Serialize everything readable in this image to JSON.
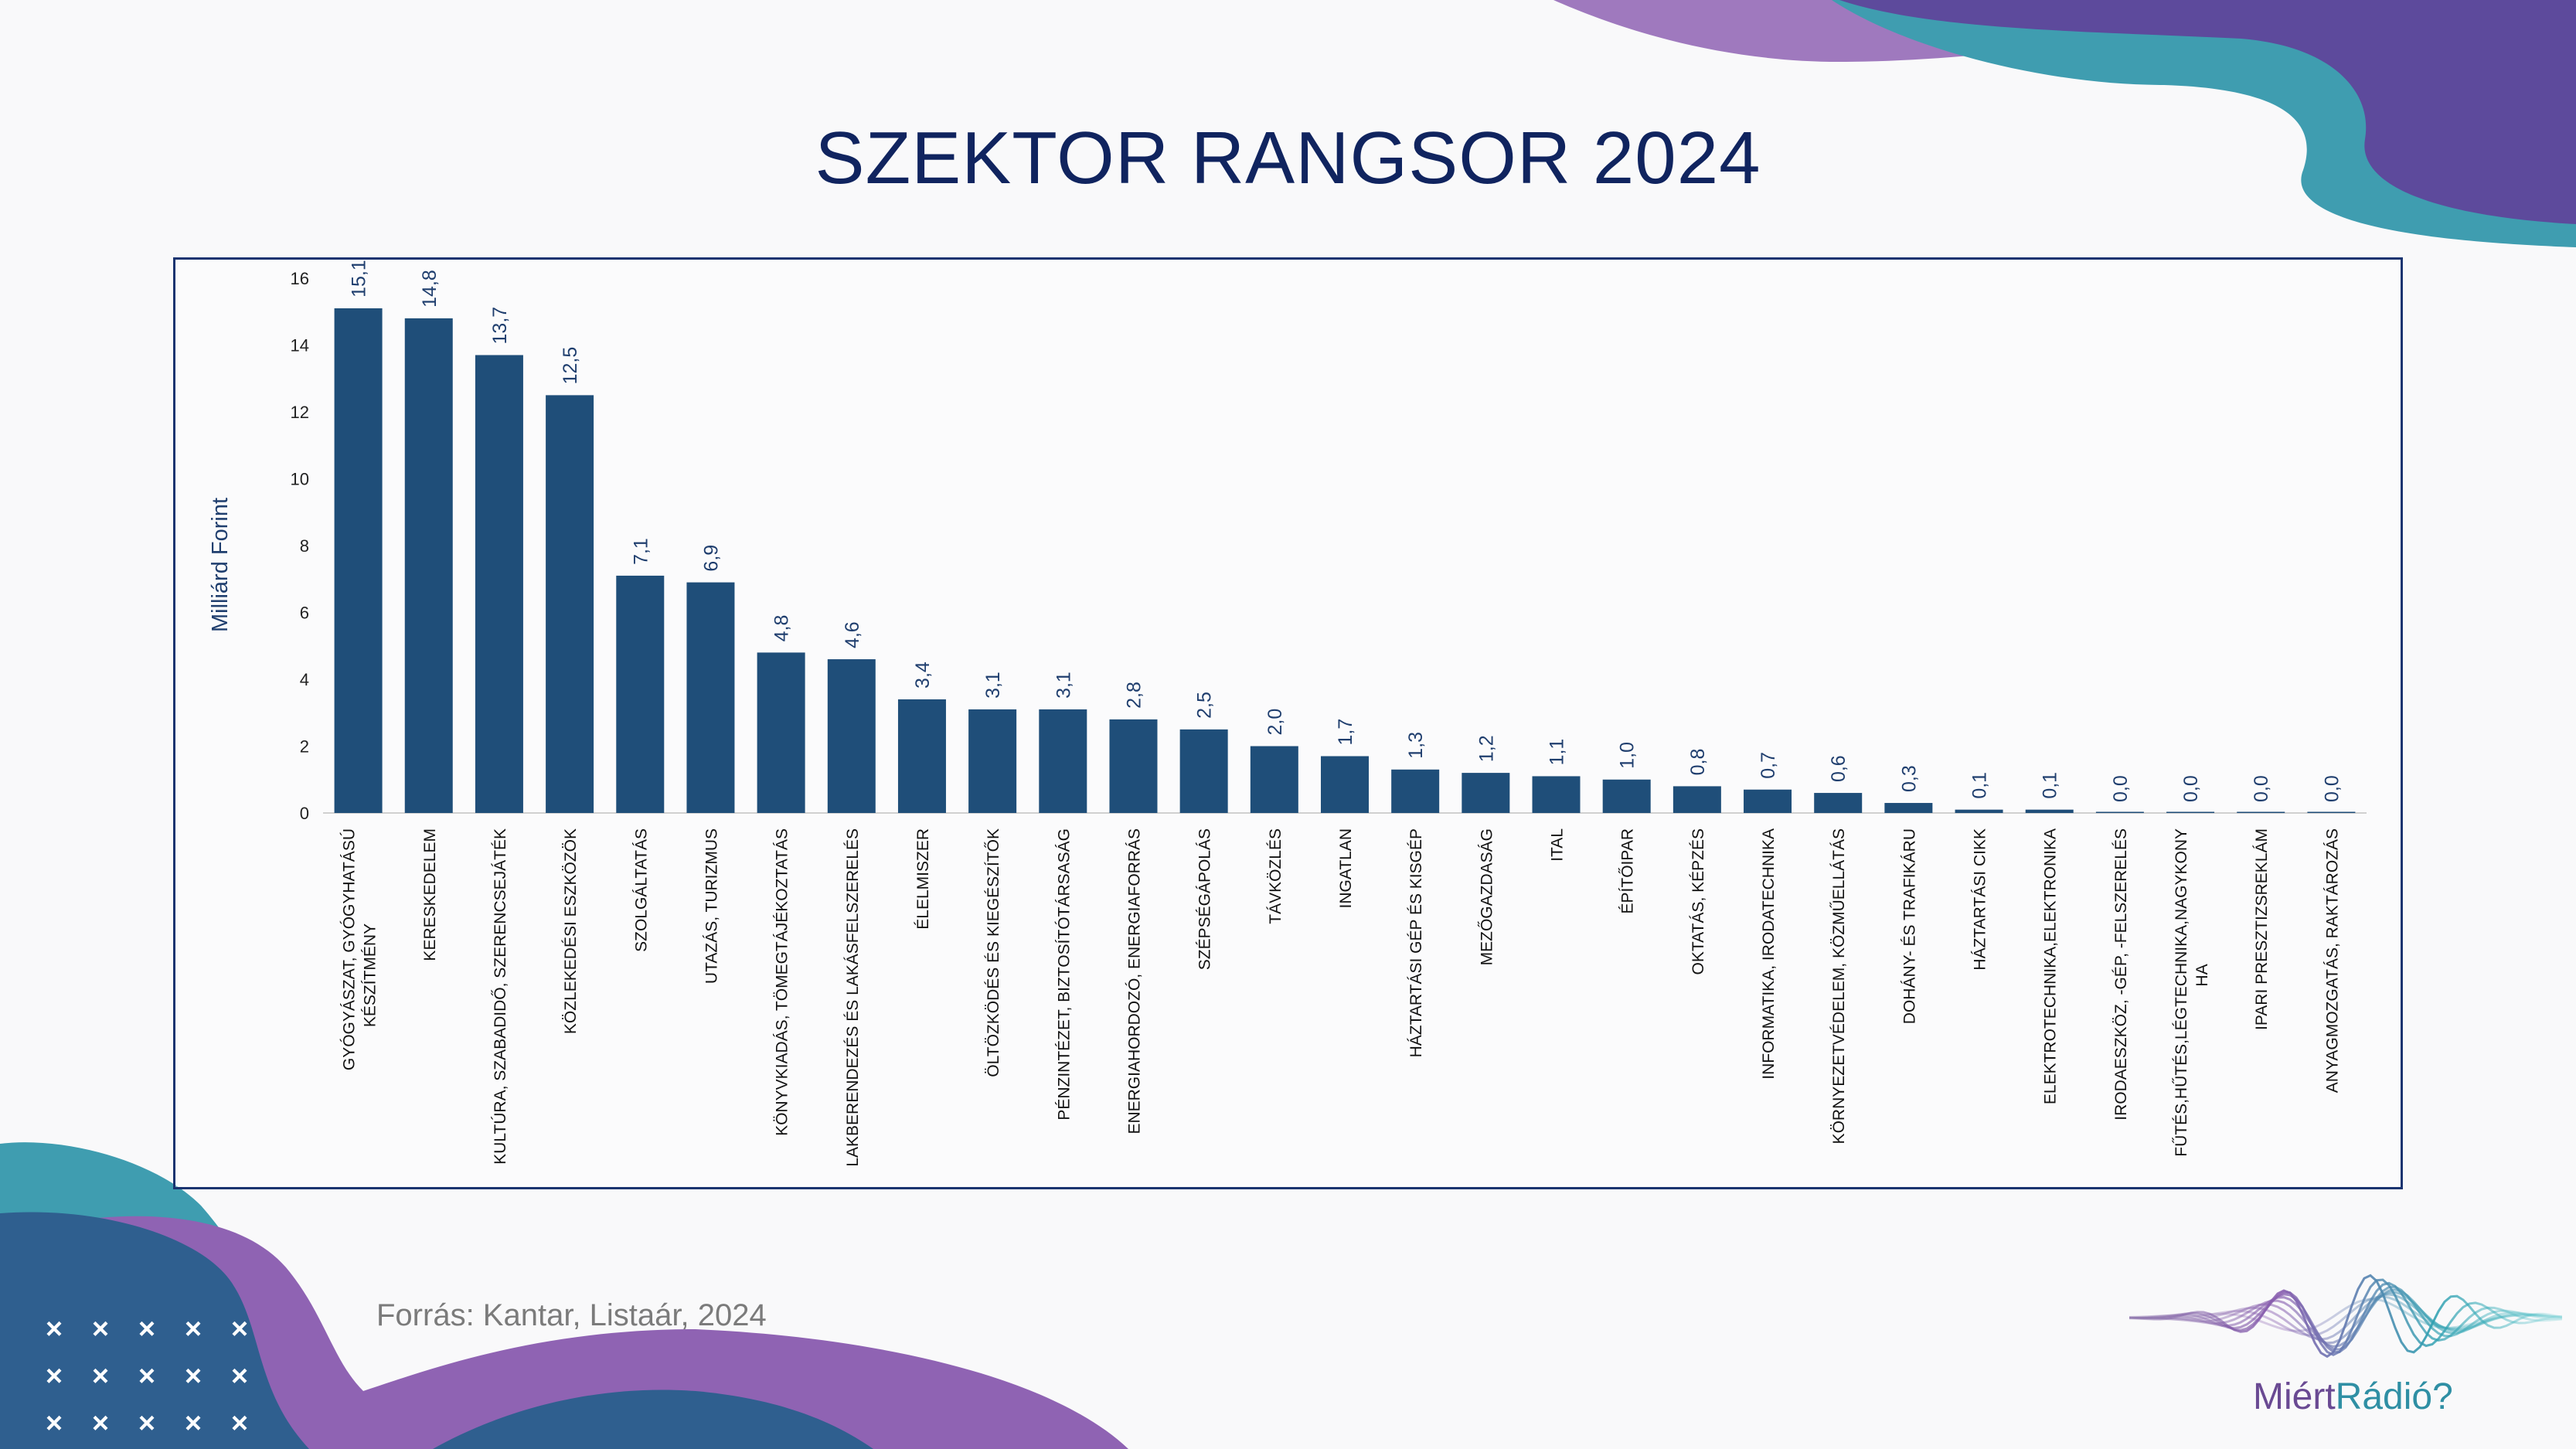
{
  "slide": {
    "title": "SZEKTOR RANGSOR 2024",
    "source": "Forrás: Kantar, Listaár, 2024",
    "logo": {
      "part1": "Miért",
      "part2": "Rádió?"
    }
  },
  "colors": {
    "title": "#10245f",
    "bar": "#1f4e79",
    "value_label": "#1f3e6e",
    "frame": "#1a3470",
    "purple": "#8f63b3",
    "teal": "#3f9db0",
    "navy": "#2f5f8f",
    "violet": "#5d4a9c"
  },
  "chart_data": {
    "type": "bar",
    "ylabel": "Milliárd Forint",
    "ylim": [
      0,
      16
    ],
    "yticks": [
      "0",
      "2",
      "4",
      "6",
      "8",
      "10",
      "12",
      "14",
      "16"
    ],
    "grid": false,
    "categories": [
      [
        "GYÓGYÁSZAT, GYÓGYHATÁSÚ",
        "KÉSZÍTMÉNY"
      ],
      [
        "KERESKEDELEM"
      ],
      [
        "KULTÚRA, SZABADIDŐ, SZERENCSEJÁTÉK"
      ],
      [
        "KÖZLEKEDÉSI ESZKÖZÖK"
      ],
      [
        "SZOLGÁLTATÁS"
      ],
      [
        "UTAZÁS, TURIZMUS"
      ],
      [
        "KÖNYVKIADÁS, TÖMEGTÁJÉKOZTATÁS"
      ],
      [
        "LAKBERENDEZÉS ÉS LAKÁSFELSZERELÉS"
      ],
      [
        "ÉLELMISZER"
      ],
      [
        "ÖLTÖZKÖDÉS ÉS KIEGÉSZÍTŐK"
      ],
      [
        "PÉNZINTÉZET, BIZTOSÍTÓTÁRSASÁG"
      ],
      [
        "ENERGIAHORDOZÓ, ENERGIAFORRÁS"
      ],
      [
        "SZÉPSÉGÁPOLÁS"
      ],
      [
        "TÁVKÖZLÉS"
      ],
      [
        "INGATLAN"
      ],
      [
        "HÁZTARTÁSI GÉP ÉS KISGÉP"
      ],
      [
        "MEZŐGAZDASÁG"
      ],
      [
        "ITAL"
      ],
      [
        "ÉPÍTŐIPAR"
      ],
      [
        "OKTATÁS, KÉPZÉS"
      ],
      [
        "INFORMATIKA, IRODATECHNIKA"
      ],
      [
        "KÖRNYEZETVÉDELEM, KÖZMŰELLÁTÁS"
      ],
      [
        "DOHÁNY- ÉS TRAFIKÁRU"
      ],
      [
        "HÁZTARTÁSI CIKK"
      ],
      [
        "ELEKTROTECHNIKA,ELEKTRONIKA"
      ],
      [
        "IRODAESZKÖZ, -GÉP, -FELSZERELÉS"
      ],
      [
        "FŰTÉS,HŰTÉS,LÉGTECHNIKA,NAGYKONY",
        "HA"
      ],
      [
        "IPARI PRESZTIZSREKLÁM"
      ],
      [
        "ANYAGMOZGATÁS, RAKTÁROZÁS"
      ]
    ],
    "values": [
      15.1,
      14.8,
      13.7,
      12.5,
      7.1,
      6.9,
      4.8,
      4.6,
      3.4,
      3.1,
      3.1,
      2.8,
      2.5,
      2.0,
      1.7,
      1.3,
      1.2,
      1.1,
      1.0,
      0.8,
      0.7,
      0.6,
      0.3,
      0.1,
      0.1,
      0.0,
      0.0,
      0.0,
      0.0
    ],
    "labels": [
      "15,1",
      "14,8",
      "13,7",
      "12,5",
      "7,1",
      "6,9",
      "4,8",
      "4,6",
      "3,4",
      "3,1",
      "3,1",
      "2,8",
      "2,5",
      "2,0",
      "1,7",
      "1,3",
      "1,2",
      "1,1",
      "1,0",
      "0,8",
      "0,7",
      "0,6",
      "0,3",
      "0,1",
      "0,1",
      "0,0",
      "0,0",
      "0,0",
      "0,0"
    ]
  }
}
